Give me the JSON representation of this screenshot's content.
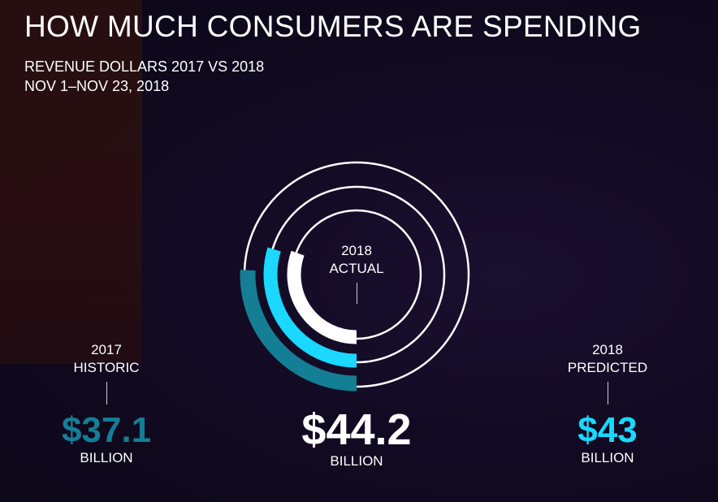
{
  "title": "HOW MUCH CONSUMERS ARE SPENDING",
  "subtitle_line1": "REVENUE DOLLARS 2017 VS 2018",
  "subtitle_line2": "NOV 1–NOV 23, 2018",
  "colors": {
    "historic_2017": "#147e95",
    "predicted_2018": "#1ad8ff",
    "actual_2018": "#ffffff"
  },
  "chart_data": {
    "type": "radial-bar",
    "title": "HOW MUCH CONSUMERS ARE SPENDING",
    "unit": "BILLION",
    "series": [
      {
        "name": "2018 ACTUAL",
        "value": 44.2,
        "label": "$44.2",
        "ring": "inner"
      },
      {
        "name": "2018 PREDICTED",
        "value": 43,
        "label": "$43",
        "ring": "middle"
      },
      {
        "name": "2017 HISTORIC",
        "value": 37.1,
        "label": "$37.1",
        "ring": "outer"
      }
    ]
  },
  "labels": {
    "actual_year": "2018",
    "actual_name": "ACTUAL",
    "actual_value": "$44.2",
    "actual_unit": "BILLION",
    "historic_year": "2017",
    "historic_name": "HISTORIC",
    "historic_value": "$37.1",
    "historic_unit": "BILLION",
    "predicted_year": "2018",
    "predicted_name": "PREDICTED",
    "predicted_value": "$43",
    "predicted_unit": "BILLION"
  }
}
